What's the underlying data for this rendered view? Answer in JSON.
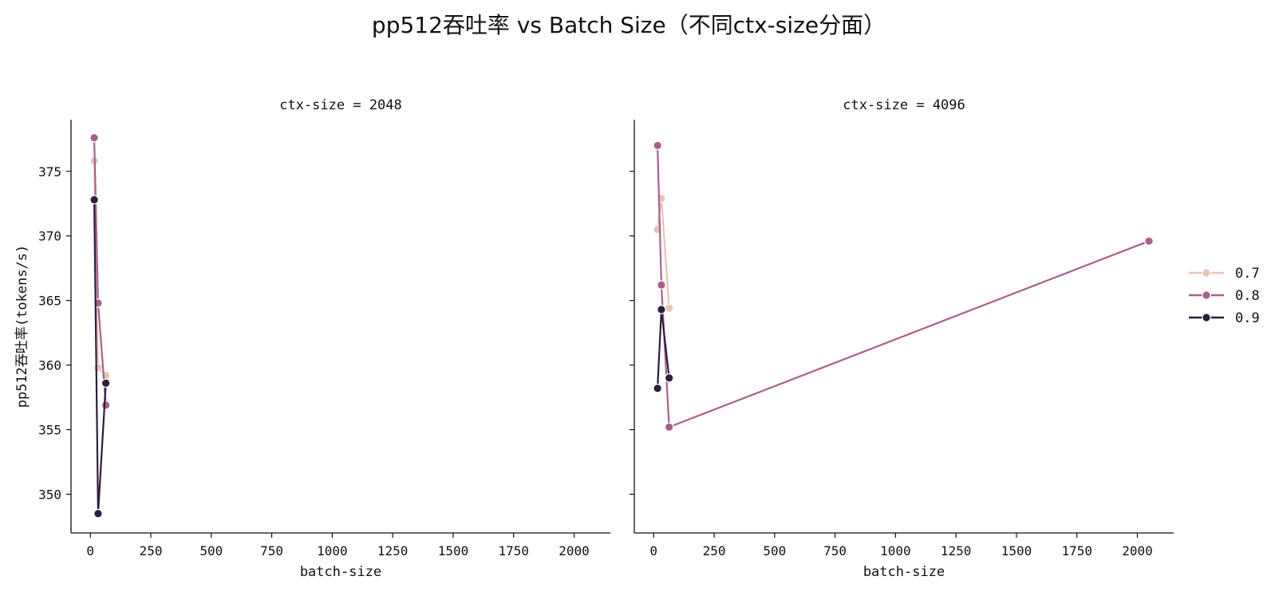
{
  "chart_data": {
    "type": "line",
    "title": "pp512吞吐率 vs Batch Size（不同ctx-size分面）",
    "ylabel": "pp512吞吐率(tokens/s)",
    "xlabel": "batch-size",
    "x_ticks": [
      0,
      250,
      500,
      750,
      1000,
      1250,
      1500,
      1750,
      2000
    ],
    "y_ticks": [
      350,
      355,
      360,
      365,
      370,
      375
    ],
    "xlim": [
      -80,
      2150
    ],
    "ylim": [
      347,
      379
    ],
    "grid": false,
    "legend_position": "right",
    "legend": [
      {
        "name": "0.7",
        "color": "#e8c4b8"
      },
      {
        "name": "0.8",
        "color": "#a9608f"
      },
      {
        "name": "0.9",
        "color": "#2d1e3e"
      }
    ],
    "panels": [
      {
        "title": "ctx-size = 2048",
        "series": [
          {
            "name": "0.7",
            "color": "#e8c4b8",
            "x": [
              16,
              32,
              64
            ],
            "y": [
              375.8,
              359.8,
              359.2
            ]
          },
          {
            "name": "0.8",
            "color": "#a9608f",
            "x": [
              16,
              32,
              64
            ],
            "y": [
              377.6,
              364.8,
              356.9
            ]
          },
          {
            "name": "0.9",
            "color": "#2d1e3e",
            "x": [
              16,
              32,
              64
            ],
            "y": [
              372.8,
              348.5,
              358.6
            ]
          }
        ]
      },
      {
        "title": "ctx-size = 4096",
        "series": [
          {
            "name": "0.7",
            "color": "#e8c4b8",
            "x": [
              16,
              32,
              64
            ],
            "y": [
              370.5,
              372.9,
              364.4
            ]
          },
          {
            "name": "0.8",
            "color": "#a9608f",
            "x": [
              16,
              32,
              64,
              2048
            ],
            "y": [
              377.0,
              366.2,
              355.2,
              369.6
            ]
          },
          {
            "name": "0.9",
            "color": "#2d1e3e",
            "x": [
              16,
              32,
              64
            ],
            "y": [
              358.2,
              364.3,
              359.0
            ]
          }
        ]
      }
    ]
  }
}
